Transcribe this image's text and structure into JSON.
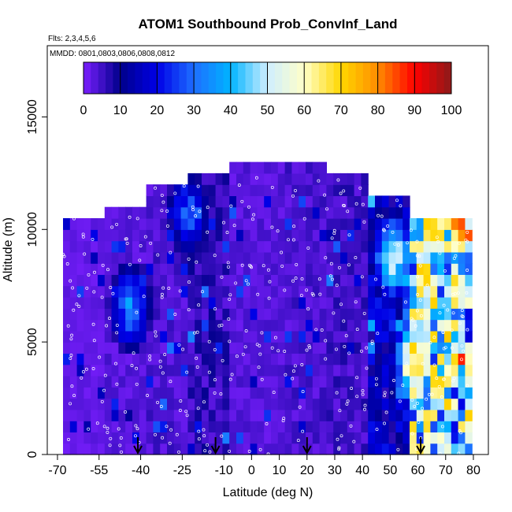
{
  "chart_data": {
    "type": "heatmap",
    "title": "ATOM1 Southbound Prob_ConvInf_Land",
    "annotations": [
      "Flts: 2,3,4,5,6",
      "MMDD: 0801,0803,0806,0808,0812"
    ],
    "xlabel": "Latitude (deg N)",
    "ylabel": "Altitude (m)",
    "xlim": [
      -70,
      80
    ],
    "ylim": [
      0,
      17500
    ],
    "x_ticks": [
      -70,
      -55,
      -40,
      -25,
      -10,
      0,
      10,
      20,
      30,
      40,
      50,
      60,
      70,
      80
    ],
    "y_ticks": [
      0,
      5000,
      10000,
      15000
    ],
    "colorbar": {
      "range": [
        0,
        100
      ],
      "ticks": [
        0,
        10,
        20,
        30,
        40,
        50,
        60,
        70,
        80,
        90,
        100
      ],
      "palette": [
        "#7b1fff",
        "#00008b",
        "#0000e6",
        "#1e6eff",
        "#00b4ff",
        "#cfeeff",
        "#ffffc8",
        "#ffd700",
        "#ff8c00",
        "#ff0000",
        "#8b1a1a"
      ]
    },
    "flight_markers_lat": [
      -41,
      -13,
      20,
      61
    ],
    "series": [
      {
        "x_range": [
          -68,
          -55
        ],
        "top": 10500,
        "value": 2
      },
      {
        "x_range": [
          -55,
          -40
        ],
        "top": 10700,
        "value": 3
      },
      {
        "x_range": [
          -40,
          -25
        ],
        "top": 11900,
        "value": 4
      },
      {
        "x_range": [
          -25,
          -10
        ],
        "top": 12100,
        "value": 6
      },
      {
        "x_range": [
          -10,
          10
        ],
        "top": 12800,
        "value": 3
      },
      {
        "x_range": [
          10,
          25
        ],
        "top": 12800,
        "value": 4
      },
      {
        "x_range": [
          25,
          40
        ],
        "top": 12300,
        "value": 5
      },
      {
        "x_range": [
          40,
          55
        ],
        "top": 11300,
        "value": 14
      },
      {
        "x_range": [
          55,
          78
        ],
        "top": 10500,
        "value": 45
      }
    ],
    "hotspots": [
      {
        "lat": 58,
        "alt": 3800,
        "value": 90
      },
      {
        "lat": 60,
        "alt": 6000,
        "value": 70
      },
      {
        "lat": 64,
        "alt": 9600,
        "value": 85
      },
      {
        "lat": 50,
        "alt": 8500,
        "value": 65
      },
      {
        "lat": 74,
        "alt": 10000,
        "value": 95
      },
      {
        "lat": -24,
        "alt": 10500,
        "value": 35
      },
      {
        "lat": -45,
        "alt": 6300,
        "value": 40
      }
    ]
  }
}
